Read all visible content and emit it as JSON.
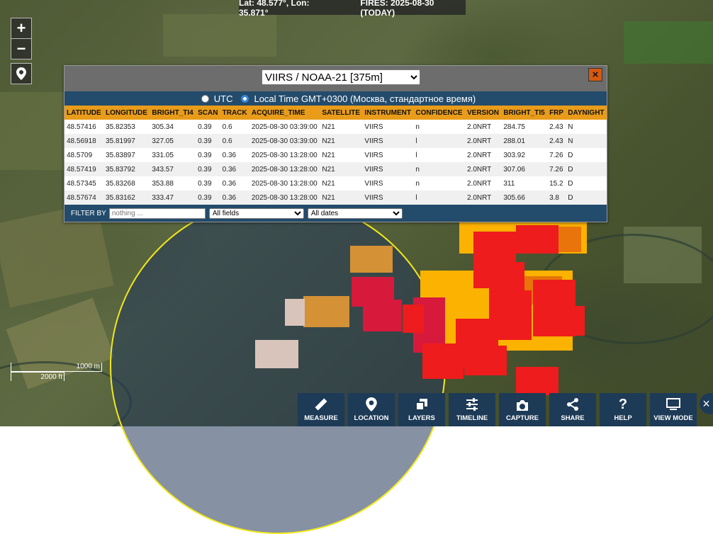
{
  "top_bar": {
    "coords": "Lat: 48.577°, Lon: 35.871°",
    "fires": "FIRES: 2025-08-30 (TODAY)"
  },
  "map_controls": {
    "zoom_in": "+",
    "zoom_out": "−"
  },
  "panel": {
    "satellite_select": "VIIRS / NOAA-21 [375m]",
    "close": "×",
    "tz_utc": "UTC",
    "tz_local": "Local Time GMT+0300 (Москва, стандартное время)",
    "columns": [
      "LATITUDE",
      "LONGITUDE",
      "BRIGHT_TI4",
      "SCAN",
      "TRACK",
      "ACQUIRE_TIME",
      "SATELLITE",
      "INSTRUMENT",
      "CONFIDENCE",
      "VERSION",
      "BRIGHT_TI5",
      "FRP",
      "DAYNIGHT"
    ],
    "rows": [
      [
        "48.57416",
        "35.82353",
        "305.34",
        "0.39",
        "0.6",
        "2025-08-30 03:39:00",
        "N21",
        "VIIRS",
        "n",
        "2.0NRT",
        "284.75",
        "2.43",
        "N"
      ],
      [
        "48.56918",
        "35.81997",
        "327.05",
        "0.39",
        "0.6",
        "2025-08-30 03:39:00",
        "N21",
        "VIIRS",
        "l",
        "2.0NRT",
        "288.01",
        "2.43",
        "N"
      ],
      [
        "48.5709",
        "35.83897",
        "331.05",
        "0.39",
        "0.36",
        "2025-08-30 13:28:00",
        "N21",
        "VIIRS",
        "l",
        "2.0NRT",
        "303.92",
        "7.26",
        "D"
      ],
      [
        "48.57419",
        "35.83792",
        "343.57",
        "0.39",
        "0.36",
        "2025-08-30 13:28:00",
        "N21",
        "VIIRS",
        "n",
        "2.0NRT",
        "307.06",
        "7.26",
        "D"
      ],
      [
        "48.57345",
        "35.83268",
        "353.88",
        "0.39",
        "0.36",
        "2025-08-30 13:28:00",
        "N21",
        "VIIRS",
        "n",
        "2.0NRT",
        "311",
        "15.2",
        "D"
      ],
      [
        "48.57674",
        "35.83162",
        "333.47",
        "0.39",
        "0.36",
        "2025-08-30 13:28:00",
        "N21",
        "VIIRS",
        "l",
        "2.0NRT",
        "305.66",
        "3.8",
        "D"
      ]
    ],
    "filter_label": "FILTER BY",
    "filter_placeholder": "nothing ...",
    "field_select": "All fields",
    "date_select": "All dates"
  },
  "scale": {
    "metric": "1000 m",
    "imperial": "2000 ft"
  },
  "toolbar": [
    {
      "label": "MEASURE",
      "icon": "ruler-icon"
    },
    {
      "label": "LOCATION",
      "icon": "location-pin-icon"
    },
    {
      "label": "LAYERS",
      "icon": "layers-icon"
    },
    {
      "label": "TIMELINE",
      "icon": "sliders-icon"
    },
    {
      "label": "CAPTURE",
      "icon": "camera-icon"
    },
    {
      "label": "SHARE",
      "icon": "share-icon"
    },
    {
      "label": "HELP",
      "icon": "question-icon"
    },
    {
      "label": "VIEW MODE",
      "icon": "monitor-icon"
    }
  ],
  "colors": {
    "fire_red": "#ee1c1c",
    "fire_crimson": "#d7193c",
    "fire_orange": "#fbb200",
    "fire_dark_orange": "#e8740b",
    "fire_old": "#d49135",
    "fire_faded": "#d9c4bc",
    "radius": "#f2e81b",
    "panel_header": "#e89c1a",
    "panel_bar": "#234b6c",
    "toolbar": "#1d3a56"
  }
}
